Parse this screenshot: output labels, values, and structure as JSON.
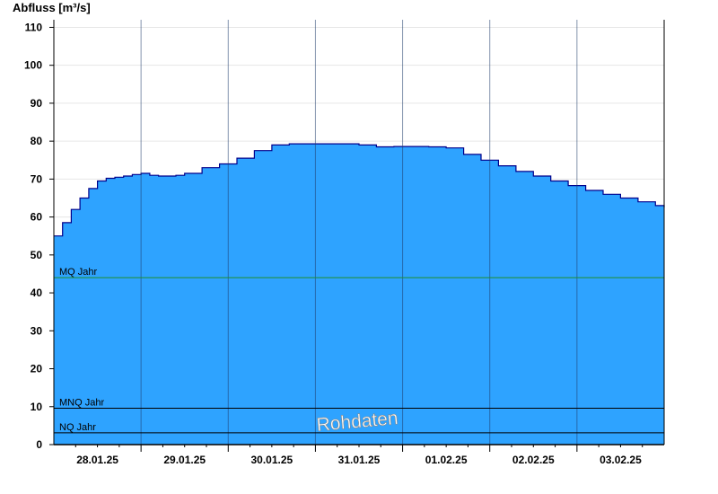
{
  "chart_data": {
    "type": "area",
    "ylabel": "Abfluss [m³/s]",
    "ylim": [
      0,
      112
    ],
    "yticks": [
      0,
      10,
      20,
      30,
      40,
      50,
      60,
      70,
      80,
      90,
      100,
      110
    ],
    "days": [
      "28.01.25",
      "29.01.25",
      "30.01.25",
      "31.01.25",
      "01.02.25",
      "02.02.25",
      "03.02.25"
    ],
    "xlim_days": [
      -0.5,
      6.5
    ],
    "grid": "horizontal lines at y ticks, vertical lines at day boundaries",
    "fill_color": "#2ea3ff",
    "line_color": "#00008b",
    "series": [
      {
        "x_days": [
          -0.5,
          -0.4,
          -0.3,
          -0.2,
          -0.1,
          0.0,
          0.1,
          0.2,
          0.3,
          0.4,
          0.5,
          0.6,
          0.7,
          0.8,
          0.9,
          1.0,
          1.2,
          1.4,
          1.6,
          1.8,
          2.0,
          2.2,
          2.4,
          2.6,
          2.8,
          3.0,
          3.2,
          3.4,
          3.6,
          3.8,
          4.0,
          4.2,
          4.4,
          4.6,
          4.8,
          5.0,
          5.2,
          5.4,
          5.6,
          5.8,
          6.0,
          6.2,
          6.4,
          6.5
        ],
        "values": [
          55.0,
          58.5,
          62.0,
          65.0,
          67.5,
          69.5,
          70.2,
          70.5,
          70.8,
          71.2,
          71.5,
          71.0,
          70.8,
          70.8,
          71.0,
          71.5,
          73.0,
          74.0,
          75.5,
          77.5,
          79.0,
          79.3,
          79.3,
          79.3,
          79.3,
          79.0,
          78.5,
          78.6,
          78.6,
          78.5,
          78.2,
          76.5,
          75.0,
          73.5,
          72.0,
          70.8,
          69.5,
          68.3,
          67.0,
          66.0,
          65.0,
          64.0,
          63.0,
          62.5
        ]
      }
    ],
    "reference_lines": [
      {
        "label": "MQ Jahr",
        "value": 44,
        "color": "#1f8f2e"
      },
      {
        "label": "MNQ Jahr",
        "value": 9.6,
        "color": "#000000"
      },
      {
        "label": "NQ Jahr",
        "value": 3.1,
        "color": "#000000"
      }
    ],
    "watermark": "Rohdaten"
  }
}
